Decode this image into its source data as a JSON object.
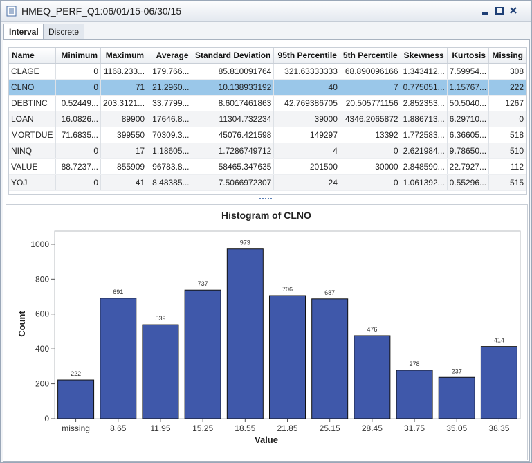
{
  "window": {
    "title": "HMEQ_PERF_Q1:06/01/15-06/30/15"
  },
  "tabs": [
    "Interval",
    "Discrete"
  ],
  "table": {
    "columns": [
      "Name",
      "Minimum",
      "Maximum",
      "Average",
      "Standard Deviation",
      "95th Percentile",
      "5th Percentile",
      "Skewness",
      "Kurtosis",
      "Missing"
    ],
    "rows": [
      [
        "CLAGE",
        "0",
        "1168.233...",
        "179.766...",
        "85.810091764",
        "321.63333333",
        "68.890096166",
        "1.343412...",
        "7.59954...",
        "308"
      ],
      [
        "CLNO",
        "0",
        "71",
        "21.2960...",
        "10.138933192",
        "40",
        "7",
        "0.775051...",
        "1.15767...",
        "222"
      ],
      [
        "DEBTINC",
        "0.52449...",
        "203.3121...",
        "33.7799...",
        "8.6017461863",
        "42.769386705",
        "20.505771156",
        "2.852353...",
        "50.5040...",
        "1267"
      ],
      [
        "LOAN",
        "16.0826...",
        "89900",
        "17646.8...",
        "11304.732234",
        "39000",
        "4346.2065872",
        "1.886713...",
        "6.29710...",
        "0"
      ],
      [
        "MORTDUE",
        "71.6835...",
        "399550",
        "70309.3...",
        "45076.421598",
        "149297",
        "13392",
        "1.772583...",
        "6.36605...",
        "518"
      ],
      [
        "NINQ",
        "0",
        "17",
        "1.18605...",
        "1.7286749712",
        "4",
        "0",
        "2.621984...",
        "9.78650...",
        "510"
      ],
      [
        "VALUE",
        "88.7237...",
        "855909",
        "96783.8...",
        "58465.347635",
        "201500",
        "30000",
        "2.848590...",
        "22.7927...",
        "112"
      ],
      [
        "YOJ",
        "0",
        "41",
        "8.48385...",
        "7.5066972307",
        "24",
        "0",
        "1.061392...",
        "0.55296...",
        "515"
      ]
    ]
  },
  "chart_data": {
    "type": "bar",
    "title": "Histogram of CLNO",
    "x_label": "Value",
    "y_label": "Count",
    "categories": [
      "missing",
      "8.65",
      "11.95",
      "15.25",
      "18.55",
      "21.85",
      "25.15",
      "28.45",
      "31.75",
      "35.05",
      "38.35"
    ],
    "values": [
      222,
      691,
      539,
      737,
      973,
      706,
      687,
      476,
      278,
      237,
      414
    ],
    "color": "#3f58aa",
    "ylim": [
      0,
      1075
    ],
    "yticks": [
      0,
      200,
      400,
      600,
      800,
      1000
    ],
    "data_labels": true,
    "grid": false
  }
}
